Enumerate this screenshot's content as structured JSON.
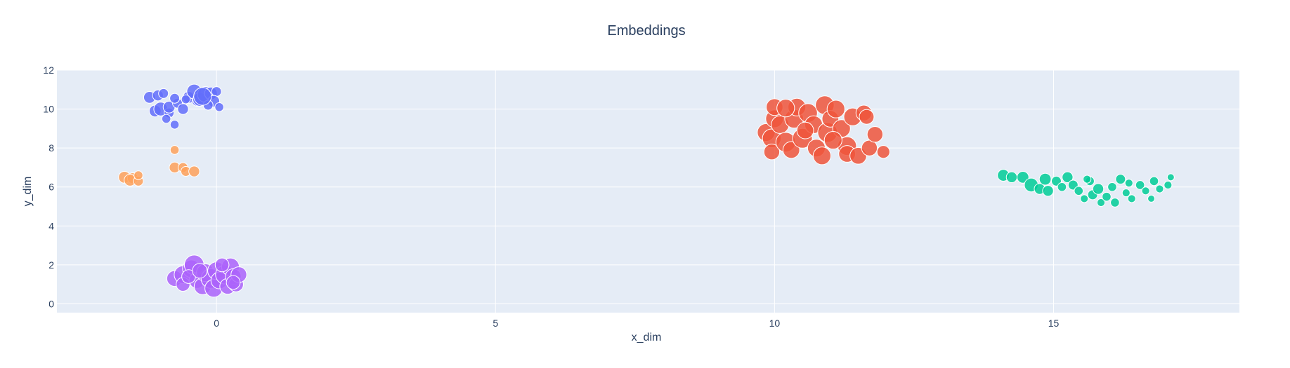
{
  "chart_data": {
    "type": "scatter",
    "title": "Embeddings",
    "xlabel": "x_dim",
    "ylabel": "y_dim",
    "xlim": [
      -2.86,
      18.33
    ],
    "ylim": [
      -0.45,
      12.0
    ],
    "xticks": [
      0,
      5,
      10,
      15
    ],
    "yticks": [
      0,
      2,
      4,
      6,
      8,
      10,
      12
    ],
    "grid": true,
    "legend": "none",
    "colors": {
      "background": "#e5ecf6",
      "grid": "#ffffff",
      "text": "#2a3f5f",
      "marker_outline": "#ffffff"
    },
    "series": [
      {
        "color": "#636efa",
        "points": [
          [
            -1.2,
            10.6,
            0.6
          ],
          [
            -1.05,
            10.7,
            0.55
          ],
          [
            -0.95,
            10.8,
            0.5
          ],
          [
            -1.1,
            9.9,
            0.6
          ],
          [
            -1.0,
            10.0,
            0.7
          ],
          [
            -0.85,
            9.8,
            0.5
          ],
          [
            -0.9,
            9.5,
            0.45
          ],
          [
            -0.75,
            9.2,
            0.45
          ],
          [
            -0.85,
            10.1,
            0.6
          ],
          [
            -0.7,
            10.3,
            0.5
          ],
          [
            -0.6,
            10.0,
            0.55
          ],
          [
            -0.75,
            10.55,
            0.5
          ],
          [
            -0.5,
            10.6,
            0.6
          ],
          [
            -0.35,
            10.4,
            0.5
          ],
          [
            -0.4,
            10.9,
            0.75
          ],
          [
            -0.3,
            10.5,
            0.7
          ],
          [
            -0.2,
            10.75,
            0.8
          ],
          [
            -0.1,
            10.8,
            0.65
          ],
          [
            0.0,
            10.9,
            0.5
          ],
          [
            -0.05,
            10.4,
            0.6
          ],
          [
            0.05,
            10.1,
            0.45
          ],
          [
            -0.15,
            10.2,
            0.5
          ],
          [
            -0.25,
            10.65,
            0.9
          ],
          [
            -0.55,
            10.5,
            0.45
          ]
        ]
      },
      {
        "color": "#fea15a",
        "points": [
          [
            -1.65,
            6.5,
            0.6
          ],
          [
            -1.5,
            6.45,
            0.55
          ],
          [
            -1.55,
            6.35,
            0.6
          ],
          [
            -1.4,
            6.3,
            0.5
          ],
          [
            -1.4,
            6.6,
            0.45
          ],
          [
            -0.75,
            7.9,
            0.45
          ],
          [
            -0.75,
            7.0,
            0.55
          ],
          [
            -0.6,
            7.0,
            0.5
          ],
          [
            -0.55,
            6.8,
            0.5
          ],
          [
            -0.4,
            6.8,
            0.55
          ]
        ]
      },
      {
        "color": "#ab63fa",
        "points": [
          [
            -0.75,
            1.3,
            0.8
          ],
          [
            -0.6,
            1.5,
            0.9
          ],
          [
            -0.6,
            1.0,
            0.7
          ],
          [
            -0.45,
            1.8,
            0.9
          ],
          [
            -0.4,
            2.0,
            1.0
          ],
          [
            -0.35,
            1.2,
            0.8
          ],
          [
            -0.25,
            0.9,
            0.85
          ],
          [
            -0.2,
            1.6,
            0.9
          ],
          [
            -0.1,
            1.3,
            1.0
          ],
          [
            -0.05,
            0.8,
            0.9
          ],
          [
            0.0,
            1.7,
            0.9
          ],
          [
            0.05,
            1.2,
            0.85
          ],
          [
            0.15,
            1.5,
            0.95
          ],
          [
            0.2,
            0.9,
            0.8
          ],
          [
            0.25,
            1.9,
            0.9
          ],
          [
            0.3,
            1.4,
            0.8
          ],
          [
            0.35,
            1.0,
            0.75
          ],
          [
            0.4,
            1.5,
            0.8
          ],
          [
            -0.5,
            1.4,
            0.7
          ],
          [
            0.1,
            2.0,
            0.7
          ],
          [
            -0.3,
            1.7,
            0.75
          ],
          [
            0.3,
            1.1,
            0.7
          ]
        ]
      },
      {
        "color": "#ef553b",
        "points": [
          [
            9.85,
            8.8,
            0.9
          ],
          [
            9.95,
            8.5,
            0.95
          ],
          [
            9.95,
            7.8,
            0.8
          ],
          [
            10.0,
            9.5,
            0.9
          ],
          [
            10.0,
            10.1,
            0.85
          ],
          [
            10.1,
            9.2,
            0.9
          ],
          [
            10.2,
            8.3,
            1.0
          ],
          [
            10.3,
            7.9,
            0.85
          ],
          [
            10.35,
            9.5,
            0.95
          ],
          [
            10.4,
            10.1,
            0.9
          ],
          [
            10.5,
            8.5,
            1.0
          ],
          [
            10.6,
            9.8,
            0.95
          ],
          [
            10.7,
            9.2,
            0.9
          ],
          [
            10.75,
            8.0,
            0.9
          ],
          [
            10.85,
            7.6,
            0.9
          ],
          [
            10.9,
            10.2,
            0.95
          ],
          [
            10.95,
            8.8,
            1.0
          ],
          [
            11.0,
            9.5,
            0.85
          ],
          [
            11.1,
            10.0,
            0.9
          ],
          [
            11.2,
            9.0,
            0.9
          ],
          [
            11.3,
            8.1,
            0.95
          ],
          [
            11.3,
            7.7,
            0.85
          ],
          [
            11.4,
            9.6,
            0.9
          ],
          [
            11.5,
            7.6,
            0.85
          ],
          [
            11.6,
            9.8,
            0.8
          ],
          [
            11.65,
            9.6,
            0.75
          ],
          [
            11.7,
            8.0,
            0.8
          ],
          [
            11.8,
            8.7,
            0.8
          ],
          [
            11.95,
            7.8,
            0.65
          ],
          [
            10.2,
            10.05,
            0.9
          ],
          [
            10.55,
            8.9,
            0.85
          ],
          [
            11.05,
            8.4,
            0.9
          ]
        ]
      },
      {
        "color": "#00cc96",
        "points": [
          [
            14.1,
            6.6,
            0.6
          ],
          [
            14.25,
            6.5,
            0.55
          ],
          [
            14.45,
            6.5,
            0.6
          ],
          [
            14.6,
            6.1,
            0.7
          ],
          [
            14.75,
            5.9,
            0.55
          ],
          [
            14.85,
            6.4,
            0.6
          ],
          [
            14.9,
            5.8,
            0.55
          ],
          [
            15.05,
            6.3,
            0.5
          ],
          [
            15.15,
            6.0,
            0.45
          ],
          [
            15.25,
            6.5,
            0.55
          ],
          [
            15.35,
            6.1,
            0.5
          ],
          [
            15.45,
            5.8,
            0.45
          ],
          [
            15.55,
            5.4,
            0.4
          ],
          [
            15.65,
            6.3,
            0.45
          ],
          [
            15.7,
            5.6,
            0.5
          ],
          [
            15.8,
            5.9,
            0.55
          ],
          [
            15.85,
            5.2,
            0.4
          ],
          [
            15.95,
            5.5,
            0.45
          ],
          [
            16.05,
            6.0,
            0.45
          ],
          [
            16.1,
            5.2,
            0.45
          ],
          [
            16.2,
            6.4,
            0.5
          ],
          [
            16.3,
            5.7,
            0.4
          ],
          [
            16.4,
            5.4,
            0.4
          ],
          [
            16.55,
            6.1,
            0.45
          ],
          [
            16.65,
            5.8,
            0.4
          ],
          [
            16.8,
            6.3,
            0.45
          ],
          [
            16.9,
            5.9,
            0.4
          ],
          [
            17.05,
            6.1,
            0.4
          ],
          [
            17.1,
            6.5,
            0.35
          ],
          [
            16.75,
            5.4,
            0.35
          ],
          [
            15.6,
            6.4,
            0.4
          ],
          [
            16.35,
            6.2,
            0.4
          ]
        ]
      }
    ]
  }
}
